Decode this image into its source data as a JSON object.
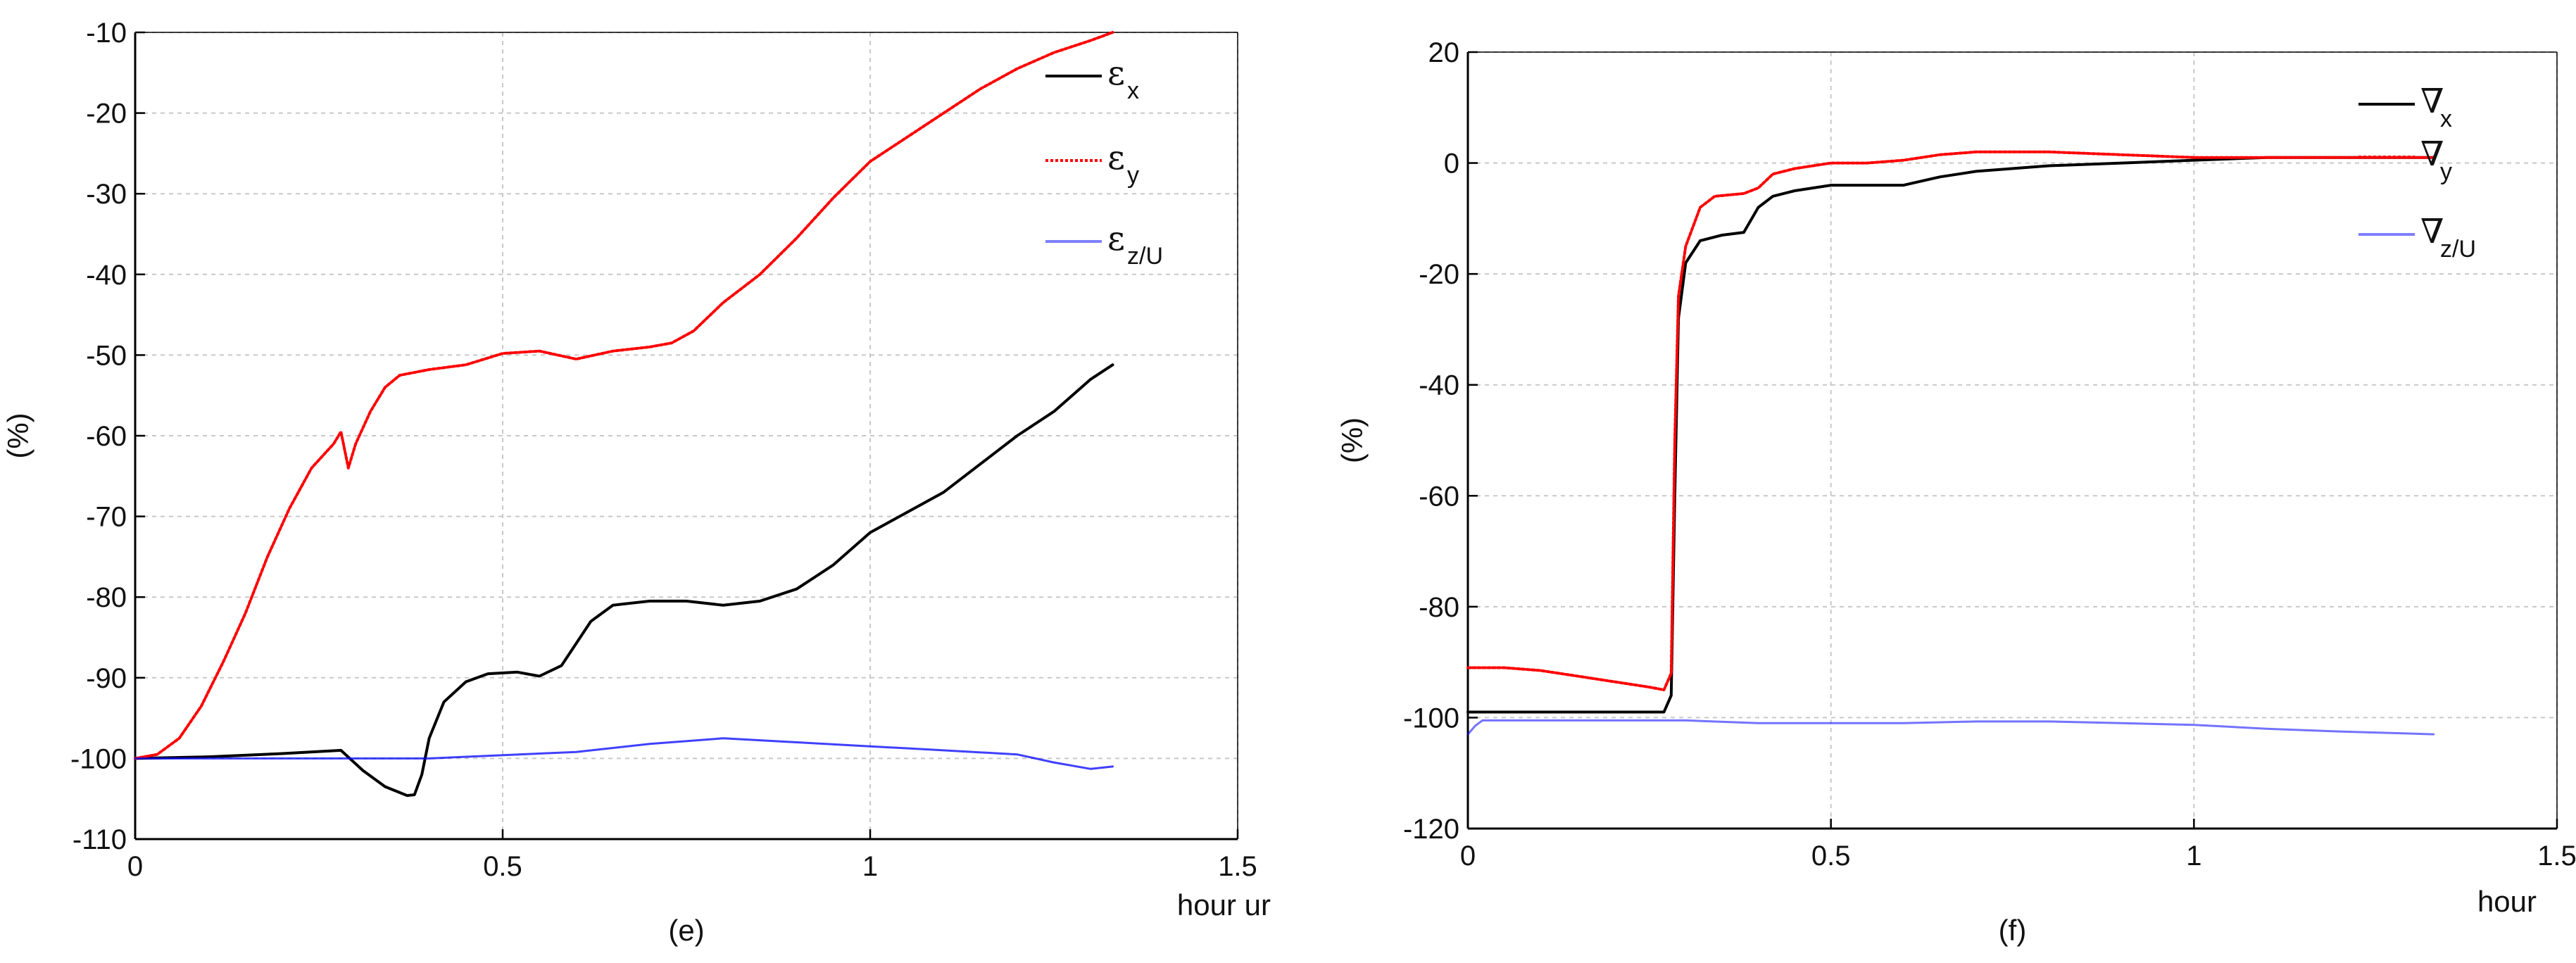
{
  "chart_data": [
    {
      "type": "line",
      "panel_label": "(e)",
      "xlabel": "hour ur",
      "ylabel": "(%)",
      "xlim": [
        0,
        1.5
      ],
      "ylim": [
        -110,
        -10
      ],
      "xticks": [
        0,
        0.5,
        1,
        1.5
      ],
      "xtick_labels": [
        "0",
        "0.5",
        "1",
        "1.5"
      ],
      "yticks": [
        -110,
        -100,
        -90,
        -80,
        -70,
        -60,
        -50,
        -40,
        -30,
        -20,
        -10
      ],
      "ytick_labels": [
        "-110",
        "-100",
        "-90",
        "-80",
        "-70",
        "-60",
        "-50",
        "-40",
        "-30",
        "-20",
        "-10"
      ],
      "grid": true,
      "legend_position": "top-right",
      "series": [
        {
          "name": "ε",
          "subscript": "x",
          "color": "#000000",
          "style": "solid",
          "x": [
            0,
            0.1,
            0.2,
            0.28,
            0.31,
            0.34,
            0.37,
            0.38,
            0.39,
            0.4,
            0.42,
            0.45,
            0.48,
            0.52,
            0.55,
            0.58,
            0.62,
            0.65,
            0.7,
            0.75,
            0.8,
            0.85,
            0.9,
            0.95,
            1.0,
            1.05,
            1.1,
            1.15,
            1.2,
            1.25,
            1.3,
            1.33
          ],
          "y": [
            -100,
            -99.8,
            -99.4,
            -99,
            -101.5,
            -103.5,
            -104.6,
            -104.5,
            -102,
            -97.5,
            -93,
            -90.5,
            -89.5,
            -89.3,
            -89.8,
            -88.5,
            -83,
            -81,
            -80.5,
            -80.5,
            -81,
            -80.5,
            -79,
            -76,
            -72,
            -69.5,
            -67,
            -63.5,
            -60,
            -57,
            -53,
            -51.2
          ]
        },
        {
          "name": "ε",
          "subscript": "y",
          "color": "#ff0000",
          "style": "dotted",
          "x": [
            0,
            0.03,
            0.06,
            0.09,
            0.12,
            0.15,
            0.18,
            0.21,
            0.24,
            0.27,
            0.28,
            0.29,
            0.3,
            0.32,
            0.34,
            0.36,
            0.4,
            0.45,
            0.5,
            0.55,
            0.6,
            0.65,
            0.7,
            0.73,
            0.76,
            0.8,
            0.85,
            0.9,
            0.95,
            1.0,
            1.05,
            1.1,
            1.15,
            1.2,
            1.25,
            1.3,
            1.33
          ],
          "y": [
            -100,
            -99.5,
            -97.5,
            -93.5,
            -88,
            -82,
            -75,
            -69,
            -64,
            -61,
            -59.5,
            -64,
            -61,
            -57,
            -54,
            -52.5,
            -51.8,
            -51.2,
            -49.8,
            -49.5,
            -50.5,
            -49.5,
            -49,
            -48.5,
            -47,
            -43.5,
            -40,
            -35.5,
            -30.5,
            -26,
            -23,
            -20,
            -17,
            -14.5,
            -12.5,
            -11,
            -10
          ]
        },
        {
          "name": "ε",
          "subscript": "z/U",
          "color": "#0000ff",
          "style": "solid",
          "x": [
            0,
            0.2,
            0.4,
            0.6,
            0.7,
            0.8,
            0.9,
            1.0,
            1.1,
            1.2,
            1.25,
            1.3,
            1.33
          ],
          "y": [
            -100,
            -100,
            -100,
            -99.2,
            -98.2,
            -97.5,
            -98,
            -98.5,
            -99,
            -99.5,
            -100.5,
            -101.3,
            -101
          ]
        }
      ]
    },
    {
      "type": "line",
      "panel_label": "(f)",
      "xlabel": "hour",
      "ylabel": "(%)",
      "xlim": [
        0,
        1.5
      ],
      "ylim": [
        -120,
        20
      ],
      "xticks": [
        0,
        0.5,
        1,
        1.5
      ],
      "xtick_labels": [
        "0",
        "0.5",
        "1",
        "1.5"
      ],
      "yticks": [
        -120,
        -100,
        -80,
        -60,
        -40,
        -20,
        0,
        20
      ],
      "ytick_labels": [
        "-120",
        "-100",
        "-80",
        "-60",
        "-40",
        "-20",
        "0",
        "20"
      ],
      "grid": true,
      "legend_position": "top-right",
      "series": [
        {
          "name": "∇",
          "subscript": "x",
          "color": "#000000",
          "style": "solid",
          "x": [
            0,
            0.1,
            0.2,
            0.27,
            0.28,
            0.285,
            0.29,
            0.3,
            0.32,
            0.35,
            0.38,
            0.4,
            0.42,
            0.45,
            0.5,
            0.55,
            0.6,
            0.65,
            0.7,
            0.8,
            0.9,
            1.0,
            1.1,
            1.2,
            1.33
          ],
          "y": [
            -99,
            -99,
            -99,
            -99,
            -96,
            -60,
            -28,
            -18,
            -14,
            -13,
            -12.5,
            -8,
            -6,
            -5,
            -4,
            -4,
            -4,
            -2.5,
            -1.5,
            -0.5,
            0,
            0.5,
            1,
            1,
            1
          ]
        },
        {
          "name": "∇",
          "subscript": "y",
          "color": "#ff0000",
          "style": "dotted",
          "x": [
            0,
            0.05,
            0.1,
            0.15,
            0.2,
            0.25,
            0.27,
            0.28,
            0.285,
            0.29,
            0.3,
            0.32,
            0.34,
            0.38,
            0.4,
            0.42,
            0.45,
            0.5,
            0.55,
            0.6,
            0.65,
            0.7,
            0.8,
            0.9,
            1.0,
            1.1,
            1.2,
            1.33
          ],
          "y": [
            -91,
            -91,
            -91.5,
            -92.5,
            -93.5,
            -94.5,
            -95,
            -92,
            -50,
            -24,
            -15,
            -8,
            -6,
            -5.5,
            -4.5,
            -2,
            -1,
            0,
            0,
            0.5,
            1.5,
            2,
            2,
            1.5,
            1,
            1,
            1,
            1
          ]
        },
        {
          "name": "∇",
          "subscript": "z/U",
          "color": "#0000ff",
          "style": "solid",
          "x": [
            0,
            0.01,
            0.02,
            0.05,
            0.1,
            0.2,
            0.3,
            0.4,
            0.5,
            0.6,
            0.7,
            0.8,
            0.9,
            1.0,
            1.1,
            1.2,
            1.33
          ],
          "y": [
            -103,
            -101.5,
            -100.5,
            -100.5,
            -100.5,
            -100.5,
            -100.5,
            -101,
            -101,
            -101,
            -100.7,
            -100.7,
            -101,
            -101.3,
            -102,
            -102.5,
            -103
          ]
        }
      ]
    }
  ]
}
